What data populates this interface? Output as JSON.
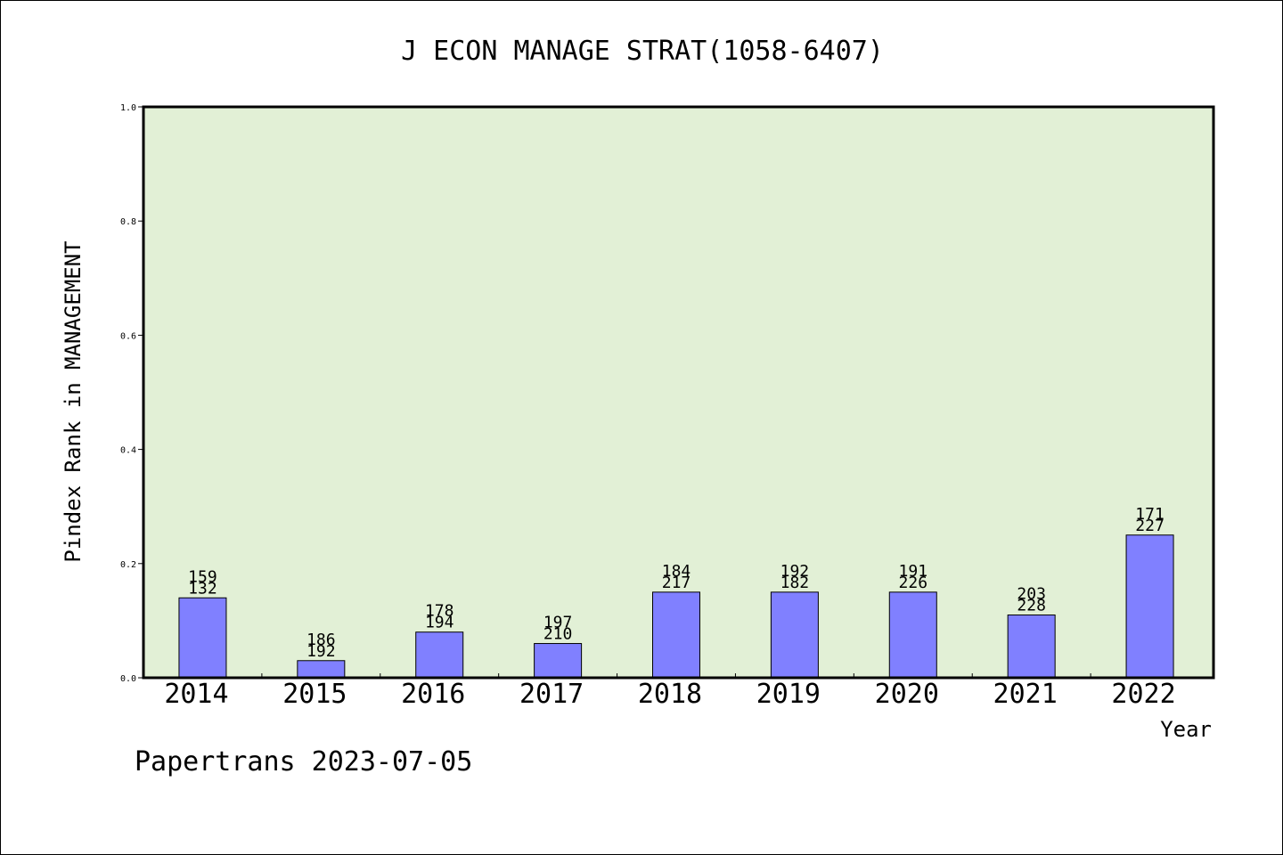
{
  "chart_data": {
    "type": "bar",
    "title": "J ECON MANAGE STRAT(1058-6407)",
    "xlabel": "Year",
    "ylabel": "Pindex Rank in MANAGEMENT",
    "categories": [
      "2014",
      "2015",
      "2016",
      "2017",
      "2018",
      "2019",
      "2020",
      "2021",
      "2022"
    ],
    "values": [
      0.14,
      0.03,
      0.08,
      0.06,
      0.15,
      0.15,
      0.15,
      0.11,
      0.25
    ],
    "label_top": [
      "159",
      "186",
      "178",
      "197",
      "184",
      "192",
      "191",
      "203",
      "171"
    ],
    "label_bottom": [
      "132",
      "192",
      "194",
      "210",
      "217",
      "182",
      "226",
      "228",
      "227"
    ],
    "ylim": [
      0,
      1.0
    ],
    "yticks": [
      "0.0",
      "0.2",
      "0.4",
      "0.6",
      "0.8",
      "1.0"
    ],
    "grid": false,
    "colors": {
      "plot_background": "#e2f0d6",
      "bar_fill": "#8080ff",
      "bar_stroke": "#000000"
    }
  },
  "footer": {
    "credit": "Papertrans 2023-07-05"
  }
}
